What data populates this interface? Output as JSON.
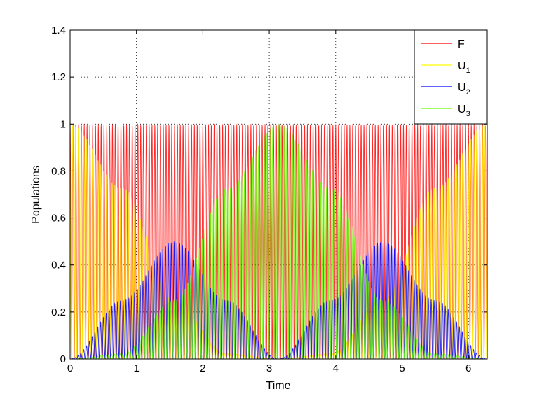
{
  "chart_data": {
    "type": "line",
    "title": "",
    "xlabel": "Time",
    "ylabel": "Populations",
    "xlim": [
      0,
      6.2832
    ],
    "ylim": [
      0,
      1.4
    ],
    "xticks": [
      "0",
      "1",
      "2",
      "3",
      "4",
      "5",
      "6"
    ],
    "yticks": [
      "0",
      "0.2",
      "0.4",
      "0.6",
      "0.8",
      "1",
      "1.2",
      "1.4"
    ],
    "grid": true,
    "legend_position": "top-right",
    "fast_oscillation_frequency": 23.5,
    "series": [
      {
        "name": "F",
        "label_main": "F",
        "label_sub": "",
        "color": "#ff0000",
        "envelope_x": [
          0,
          0.7854,
          1.5708,
          2.3562,
          3.1416,
          3.927,
          4.7124,
          5.4978,
          6.2832
        ],
        "envelope_max": [
          1,
          1,
          1,
          1,
          1,
          1,
          1,
          1,
          1
        ]
      },
      {
        "name": "U_1",
        "label_main": "U",
        "label_sub": "1",
        "color": "#ffff00",
        "envelope_x": [
          0,
          0.7854,
          1.5708,
          2.3562,
          3.1416,
          3.927,
          4.7124,
          5.4978,
          6.2832
        ],
        "envelope_max": [
          1.0,
          0.729,
          0.25,
          0.022,
          0.0,
          0.022,
          0.25,
          0.729,
          1.0
        ]
      },
      {
        "name": "U_2",
        "label_main": "U",
        "label_sub": "2",
        "color": "#0000ff",
        "envelope_x": [
          0,
          0.7854,
          1.5708,
          2.3562,
          3.1416,
          3.927,
          4.7124,
          5.4978,
          6.2832
        ],
        "envelope_max": [
          0.0,
          0.25,
          0.5,
          0.25,
          0.0,
          0.25,
          0.5,
          0.25,
          0.0
        ]
      },
      {
        "name": "U_3",
        "label_main": "U",
        "label_sub": "3",
        "color": "#66ff00",
        "envelope_x": [
          0,
          0.7854,
          1.5708,
          2.3562,
          3.1416,
          3.927,
          4.7124,
          5.4978,
          6.2832
        ],
        "envelope_max": [
          0.0,
          0.022,
          0.25,
          0.729,
          1.0,
          0.729,
          0.25,
          0.022,
          0.0
        ]
      }
    ]
  }
}
